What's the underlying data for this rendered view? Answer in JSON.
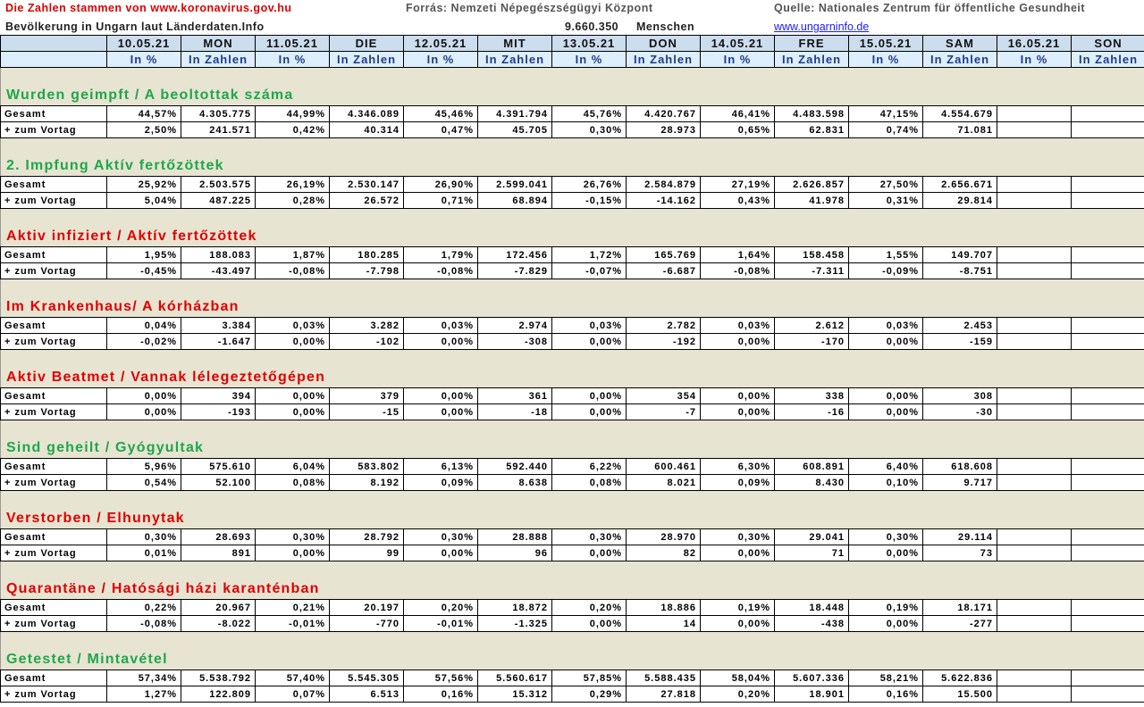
{
  "header": {
    "source_line": "Die Zahlen stammen von www.koronavirus.gov.hu",
    "forras": "Forrás: Nemzeti Népegészségügyi Központ",
    "quelle": "Quelle: Nationales Zentrum für öffentliche Gesundheit",
    "population_label": "Bevölkerung in Ungarn laut Länderdaten.Info",
    "population_value": "9.660.350",
    "population_unit": "Menschen",
    "website": "www.ungarninfo.de"
  },
  "days": [
    {
      "date": "10.05.21",
      "day": "MON"
    },
    {
      "date": "11.05.21",
      "day": "DIE"
    },
    {
      "date": "12.05.21",
      "day": "MIT"
    },
    {
      "date": "13.05.21",
      "day": "DON"
    },
    {
      "date": "14.05.21",
      "day": "FRE"
    },
    {
      "date": "15.05.21",
      "day": "SAM"
    },
    {
      "date": "16.05.21",
      "day": "SON"
    }
  ],
  "sub_headers": {
    "pct": "In %",
    "num": "In Zahlen"
  },
  "row_labels": {
    "total": "Gesamt",
    "delta": "+ zum Vortag"
  },
  "sections": [
    {
      "title": "Wurden geimpft /  A beoltottak száma",
      "color": "green",
      "total": [
        [
          "44,57%",
          "4.305.775"
        ],
        [
          "44,99%",
          "4.346.089"
        ],
        [
          "45,46%",
          "4.391.794"
        ],
        [
          "45,76%",
          "4.420.767"
        ],
        [
          "46,41%",
          "4.483.598"
        ],
        [
          "47,15%",
          "4.554.679"
        ],
        [
          "",
          ""
        ]
      ],
      "delta": [
        [
          "2,50%",
          "241.571"
        ],
        [
          "0,42%",
          "40.314"
        ],
        [
          "0,47%",
          "45.705"
        ],
        [
          "0,30%",
          "28.973"
        ],
        [
          "0,65%",
          "62.831"
        ],
        [
          "0,74%",
          "71.081"
        ],
        [
          "",
          ""
        ]
      ]
    },
    {
      "title": "2. Impfung  Aktív fertőzöttek",
      "color": "green",
      "total": [
        [
          "25,92%",
          "2.503.575"
        ],
        [
          "26,19%",
          "2.530.147"
        ],
        [
          "26,90%",
          "2.599.041"
        ],
        [
          "26,76%",
          "2.584.879"
        ],
        [
          "27,19%",
          "2.626.857"
        ],
        [
          "27,50%",
          "2.656.671"
        ],
        [
          "",
          ""
        ]
      ],
      "delta": [
        [
          "5,04%",
          "487.225"
        ],
        [
          "0,28%",
          "26.572"
        ],
        [
          "0,71%",
          "68.894"
        ],
        [
          "-0,15%",
          "-14.162"
        ],
        [
          "0,43%",
          "41.978"
        ],
        [
          "0,31%",
          "29.814"
        ],
        [
          "",
          ""
        ]
      ]
    },
    {
      "title": "Aktiv infiziert /  Aktív fertőzöttek",
      "color": "red",
      "total": [
        [
          "1,95%",
          "188.083"
        ],
        [
          "1,87%",
          "180.285"
        ],
        [
          "1,79%",
          "172.456"
        ],
        [
          "1,72%",
          "165.769"
        ],
        [
          "1,64%",
          "158.458"
        ],
        [
          "1,55%",
          "149.707"
        ],
        [
          "",
          ""
        ]
      ],
      "delta": [
        [
          "-0,45%",
          "-43.497"
        ],
        [
          "-0,08%",
          "-7.798"
        ],
        [
          "-0,08%",
          "-7.829"
        ],
        [
          "-0,07%",
          "-6.687"
        ],
        [
          "-0,08%",
          "-7.311"
        ],
        [
          "-0,09%",
          "-8.751"
        ],
        [
          "",
          ""
        ]
      ]
    },
    {
      "title": "Im  Krankenhaus/  A kórházban",
      "color": "red",
      "total": [
        [
          "0,04%",
          "3.384"
        ],
        [
          "0,03%",
          "3.282"
        ],
        [
          "0,03%",
          "2.974"
        ],
        [
          "0,03%",
          "2.782"
        ],
        [
          "0,03%",
          "2.612"
        ],
        [
          "0,03%",
          "2.453"
        ],
        [
          "",
          ""
        ]
      ],
      "delta": [
        [
          "-0,02%",
          "-1.647"
        ],
        [
          "0,00%",
          "-102"
        ],
        [
          "0,00%",
          "-308"
        ],
        [
          "0,00%",
          "-192"
        ],
        [
          "0,00%",
          "-170"
        ],
        [
          "0,00%",
          "-159"
        ],
        [
          "",
          ""
        ]
      ]
    },
    {
      "title": "Aktiv Beatmet /  Vannak lélegeztetőgépen",
      "color": "red",
      "total": [
        [
          "0,00%",
          "394"
        ],
        [
          "0,00%",
          "379"
        ],
        [
          "0,00%",
          "361"
        ],
        [
          "0,00%",
          "354"
        ],
        [
          "0,00%",
          "338"
        ],
        [
          "0,00%",
          "308"
        ],
        [
          "",
          ""
        ]
      ],
      "delta": [
        [
          "0,00%",
          "-193"
        ],
        [
          "0,00%",
          "-15"
        ],
        [
          "0,00%",
          "-18"
        ],
        [
          "0,00%",
          "-7"
        ],
        [
          "0,00%",
          "-16"
        ],
        [
          "0,00%",
          "-30"
        ],
        [
          "",
          ""
        ]
      ]
    },
    {
      "title": "Sind geheilt /  Gyógyultak",
      "color": "green",
      "total": [
        [
          "5,96%",
          "575.610"
        ],
        [
          "6,04%",
          "583.802"
        ],
        [
          "6,13%",
          "592.440"
        ],
        [
          "6,22%",
          "600.461"
        ],
        [
          "6,30%",
          "608.891"
        ],
        [
          "6,40%",
          "618.608"
        ],
        [
          "",
          ""
        ]
      ],
      "delta": [
        [
          "0,54%",
          "52.100"
        ],
        [
          "0,08%",
          "8.192"
        ],
        [
          "0,09%",
          "8.638"
        ],
        [
          "0,08%",
          "8.021"
        ],
        [
          "0,09%",
          "8.430"
        ],
        [
          "0,10%",
          "9.717"
        ],
        [
          "",
          ""
        ]
      ]
    },
    {
      "title": "Verstorben /  Elhunytak",
      "color": "red",
      "total": [
        [
          "0,30%",
          "28.693"
        ],
        [
          "0,30%",
          "28.792"
        ],
        [
          "0,30%",
          "28.888"
        ],
        [
          "0,30%",
          "28.970"
        ],
        [
          "0,30%",
          "29.041"
        ],
        [
          "0,30%",
          "29.114"
        ],
        [
          "",
          ""
        ]
      ],
      "delta": [
        [
          "0,01%",
          "891"
        ],
        [
          "0,00%",
          "99"
        ],
        [
          "0,00%",
          "96"
        ],
        [
          "0,00%",
          "82"
        ],
        [
          "0,00%",
          "71"
        ],
        [
          "0,00%",
          "73"
        ],
        [
          "",
          ""
        ]
      ]
    },
    {
      "title": "Quarantäne /  Hatósági házi karanténban",
      "color": "red",
      "total": [
        [
          "0,22%",
          "20.967"
        ],
        [
          "0,21%",
          "20.197"
        ],
        [
          "0,20%",
          "18.872"
        ],
        [
          "0,20%",
          "18.886"
        ],
        [
          "0,19%",
          "18.448"
        ],
        [
          "0,19%",
          "18.171"
        ],
        [
          "",
          ""
        ]
      ],
      "delta": [
        [
          "-0,08%",
          "-8.022"
        ],
        [
          "-0,01%",
          "-770"
        ],
        [
          "-0,01%",
          "-1.325"
        ],
        [
          "0,00%",
          "14"
        ],
        [
          "0,00%",
          "-438"
        ],
        [
          "0,00%",
          "-277"
        ],
        [
          "",
          ""
        ]
      ]
    },
    {
      "title": "Getestet /  Mintavétel",
      "color": "green",
      "total": [
        [
          "57,34%",
          "5.538.792"
        ],
        [
          "57,40%",
          "5.545.305"
        ],
        [
          "57,56%",
          "5.560.617"
        ],
        [
          "57,85%",
          "5.588.435"
        ],
        [
          "58,04%",
          "5.607.336"
        ],
        [
          "58,21%",
          "5.622.836"
        ],
        [
          "",
          ""
        ]
      ],
      "delta": [
        [
          "1,27%",
          "122.809"
        ],
        [
          "0,07%",
          "6.513"
        ],
        [
          "0,16%",
          "15.312"
        ],
        [
          "0,29%",
          "27.818"
        ],
        [
          "0,20%",
          "18.901"
        ],
        [
          "0,16%",
          "15.500"
        ],
        [
          "",
          ""
        ]
      ]
    }
  ],
  "colors": {
    "green": "#1da84a",
    "red": "#e00000",
    "header_bg": "#ccddee",
    "section_bg": "#e8e4d2"
  }
}
